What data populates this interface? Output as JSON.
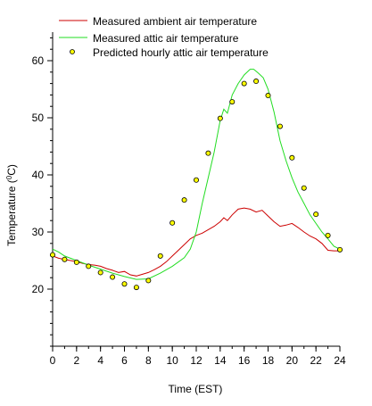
{
  "chart_data": {
    "type": "line",
    "xlabel": "Time (EST)",
    "ylabel_main": "Temperature (",
    "ylabel_sup": "0",
    "ylabel_end": "C)",
    "xlim": [
      0,
      24
    ],
    "ylim": [
      10,
      65
    ],
    "xticks": [
      0,
      2,
      4,
      6,
      8,
      10,
      12,
      14,
      16,
      18,
      20,
      22,
      24
    ],
    "yticks": [
      20,
      30,
      40,
      50,
      60
    ],
    "x_minor_step": 1,
    "y_minor_step": 2,
    "grid": false,
    "legend_position": "top",
    "series": [
      {
        "name": "Measured ambient air temperature",
        "style": "line",
        "color": "#cc0000",
        "x": [
          0,
          0.5,
          1,
          1.5,
          2,
          2.5,
          3,
          3.5,
          4,
          4.5,
          5,
          5.5,
          6,
          6.5,
          7,
          7.5,
          8,
          8.5,
          9,
          9.5,
          10,
          10.5,
          11,
          11.5,
          12,
          12.5,
          13,
          13.5,
          14,
          14.3,
          14.6,
          15,
          15.5,
          16,
          16.5,
          17,
          17.5,
          18,
          18.5,
          19,
          19.5,
          20,
          20.5,
          21,
          21.5,
          22,
          22.5,
          23,
          23.5,
          24
        ],
        "y": [
          25.8,
          25.4,
          25.2,
          25.0,
          24.8,
          24.5,
          24.3,
          24.2,
          24.0,
          23.6,
          23.3,
          22.9,
          23.1,
          22.5,
          22.3,
          22.6,
          22.9,
          23.4,
          24.0,
          24.8,
          25.8,
          26.8,
          27.8,
          28.8,
          29.4,
          29.8,
          30.4,
          31.0,
          31.8,
          32.5,
          32.0,
          33.0,
          34.0,
          34.2,
          34.0,
          33.5,
          33.8,
          32.8,
          31.8,
          31.0,
          31.2,
          31.5,
          30.8,
          30.0,
          29.3,
          28.8,
          28.0,
          26.8,
          26.7,
          26.7
        ]
      },
      {
        "name": "Measured attic air temperature",
        "style": "line",
        "color": "#22dd22",
        "x": [
          0,
          0.5,
          1,
          2,
          3,
          4,
          5,
          6,
          7,
          8,
          9,
          10,
          11,
          11.5,
          12,
          12.5,
          13,
          13.5,
          14,
          14.3,
          14.6,
          15,
          15.5,
          16,
          16.5,
          16.8,
          17.2,
          17.6,
          18,
          18.5,
          19,
          19.5,
          20,
          20.5,
          21,
          21.5,
          22,
          22.5,
          23,
          23.5,
          24
        ],
        "y": [
          27.0,
          26.5,
          25.8,
          25.0,
          24.2,
          23.5,
          22.8,
          22.2,
          21.7,
          21.8,
          22.8,
          24.0,
          25.5,
          27.0,
          30.0,
          35.0,
          39.5,
          44.0,
          49.5,
          51.5,
          50.8,
          54.0,
          56.0,
          57.5,
          58.5,
          58.5,
          57.8,
          57.0,
          55.0,
          51.0,
          46.0,
          42.5,
          39.5,
          37.0,
          35.0,
          33.0,
          31.5,
          30.0,
          28.8,
          27.5,
          27.0
        ]
      },
      {
        "name": "Predicted hourly attic air temperature",
        "style": "markers",
        "color": "#ffff00",
        "edge_color": "#000000",
        "x": [
          0,
          1,
          2,
          3,
          4,
          5,
          6,
          7,
          8,
          9,
          10,
          11,
          12,
          13,
          14,
          15,
          16,
          17,
          18,
          19,
          20,
          21,
          22,
          23,
          24
        ],
        "y": [
          26.0,
          25.2,
          24.7,
          24.0,
          22.9,
          22.1,
          20.9,
          20.3,
          21.5,
          25.8,
          31.6,
          35.6,
          39.1,
          43.8,
          49.9,
          52.8,
          56.0,
          56.4,
          53.9,
          48.5,
          43.0,
          37.7,
          33.1,
          29.4,
          26.9
        ]
      }
    ]
  }
}
